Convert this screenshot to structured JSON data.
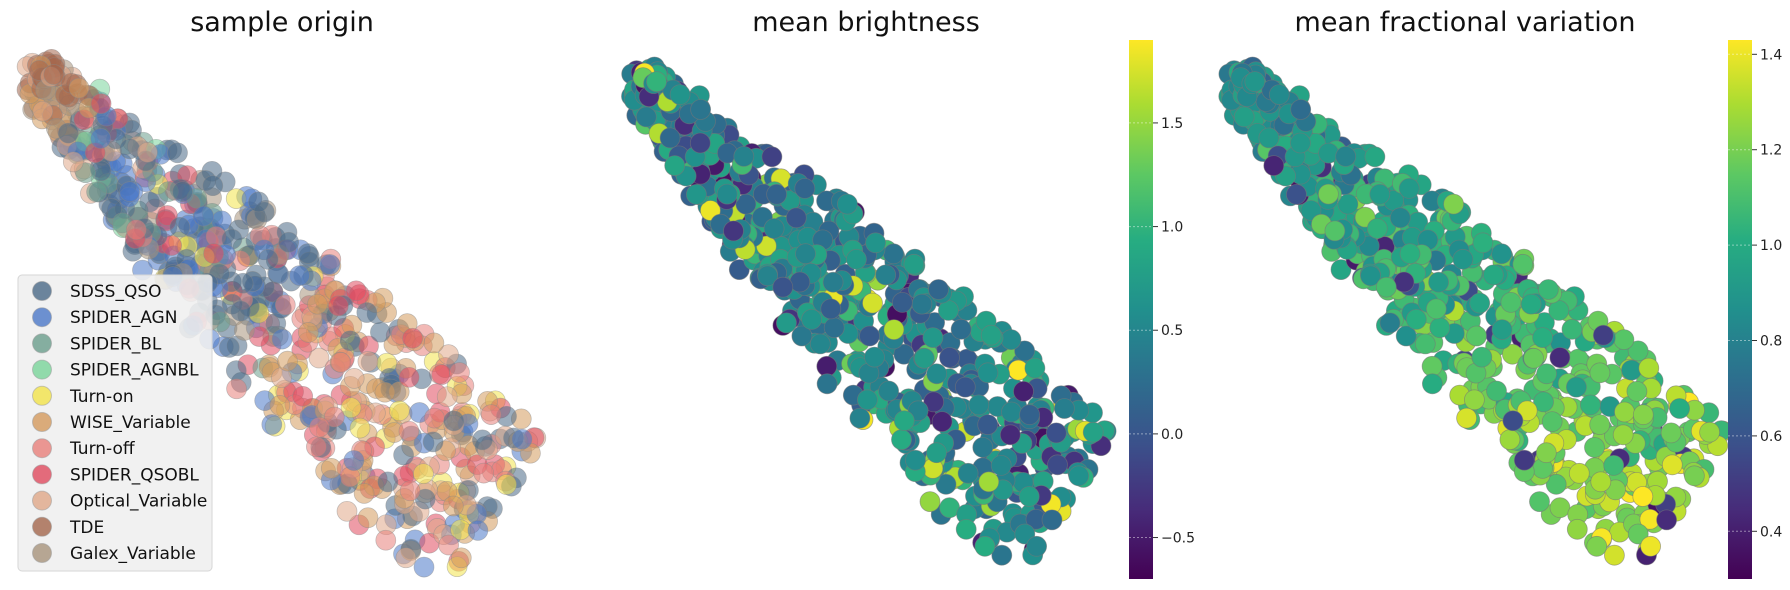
{
  "chart_data": [
    {
      "type": "scatter",
      "title": "sample origin",
      "xlabel": "",
      "ylabel": "",
      "grid": false,
      "axes_visible": false,
      "legend_placement": "lower-left",
      "legend": [
        {
          "name": "SDSS_QSO",
          "color": "#4a6987"
        },
        {
          "name": "SPIDER_AGN",
          "color": "#4b78c8"
        },
        {
          "name": "SPIDER_BL",
          "color": "#6a9e8c"
        },
        {
          "name": "SPIDER_AGNBL",
          "color": "#79d49a"
        },
        {
          "name": "Turn-on",
          "color": "#f3e34a"
        },
        {
          "name": "WISE_Variable",
          "color": "#d49a5c"
        },
        {
          "name": "Turn-off",
          "color": "#e8807a"
        },
        {
          "name": "SPIDER_QSOBL",
          "color": "#e04a5e"
        },
        {
          "name": "Optical_Variable",
          "color": "#e0a888"
        },
        {
          "name": "TDE",
          "color": "#a4664c"
        },
        {
          "name": "Galex_Variable",
          "color": "#a8947c"
        }
      ]
    },
    {
      "type": "scatter",
      "title": "mean brightness",
      "xlabel": "",
      "ylabel": "",
      "grid": false,
      "axes_visible": false,
      "colormap": "viridis",
      "colorbar": {
        "range": [
          -0.7,
          1.9
        ],
        "ticks": [
          -0.5,
          0.0,
          0.5,
          1.0,
          1.5
        ],
        "tick_labels": [
          "−0.5",
          "0.0",
          "0.5",
          "1.0",
          "1.5"
        ]
      }
    },
    {
      "type": "scatter",
      "title": "mean fractional variation",
      "xlabel": "",
      "ylabel": "",
      "grid": false,
      "axes_visible": false,
      "colormap": "viridis",
      "colorbar": {
        "range": [
          0.3,
          1.43
        ],
        "ticks": [
          0.4,
          0.6,
          0.8,
          1.0,
          1.2,
          1.4
        ],
        "tick_labels": [
          "0.4",
          "0.6",
          "0.8",
          "1.0",
          "1.2",
          "1.4"
        ]
      }
    }
  ]
}
